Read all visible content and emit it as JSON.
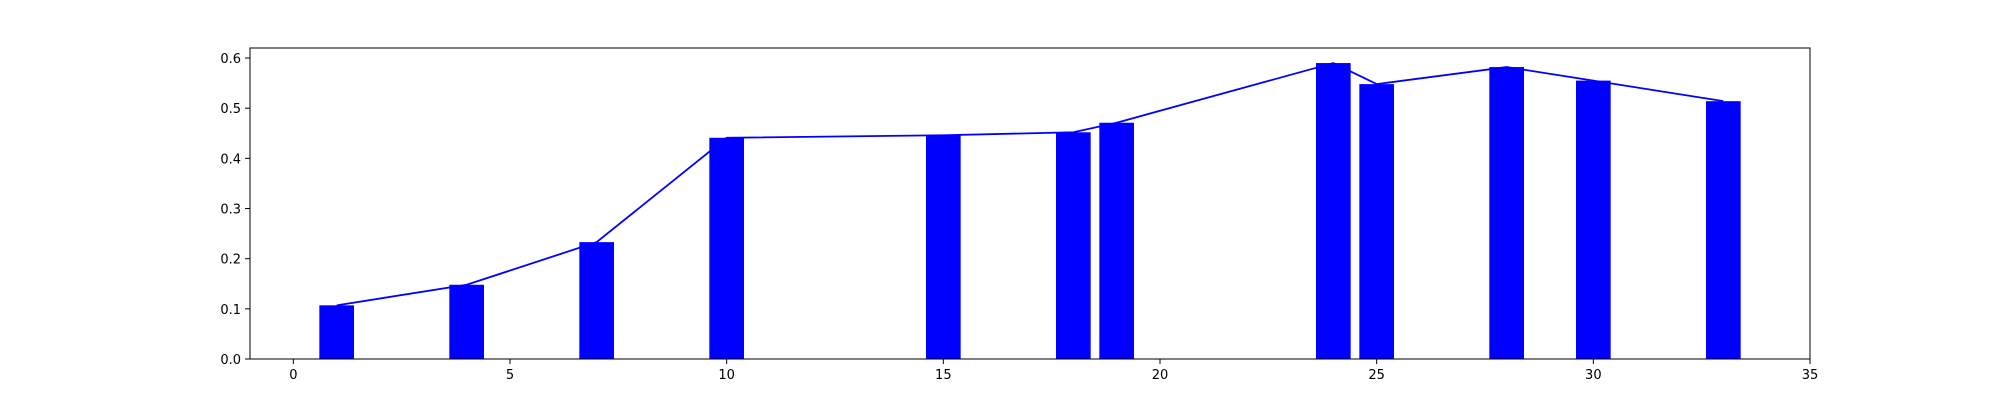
{
  "chart_data": {
    "type": "bar",
    "title": "",
    "xlabel": "",
    "ylabel": "",
    "xlim": [
      -1,
      35
    ],
    "ylim": [
      0,
      0.62
    ],
    "grid": false,
    "x_ticks": [
      0,
      5,
      10,
      15,
      20,
      25,
      30,
      35
    ],
    "y_ticks": [
      0.0,
      0.1,
      0.2,
      0.3,
      0.4,
      0.5,
      0.6
    ],
    "bar_width": 0.8,
    "color": "#0000ff",
    "x": [
      1,
      4,
      7,
      10,
      15,
      18,
      19,
      24,
      25,
      28,
      30,
      33
    ],
    "values": [
      0.107,
      0.148,
      0.233,
      0.441,
      0.446,
      0.452,
      0.471,
      0.59,
      0.548,
      0.582,
      0.555,
      0.514
    ],
    "line": {
      "color": "#0000ff",
      "x": [
        1,
        4,
        7,
        10,
        15,
        18,
        19,
        24,
        25,
        28,
        30,
        33
      ],
      "values": [
        0.107,
        0.148,
        0.233,
        0.441,
        0.446,
        0.452,
        0.471,
        0.59,
        0.548,
        0.582,
        0.555,
        0.514
      ]
    }
  }
}
